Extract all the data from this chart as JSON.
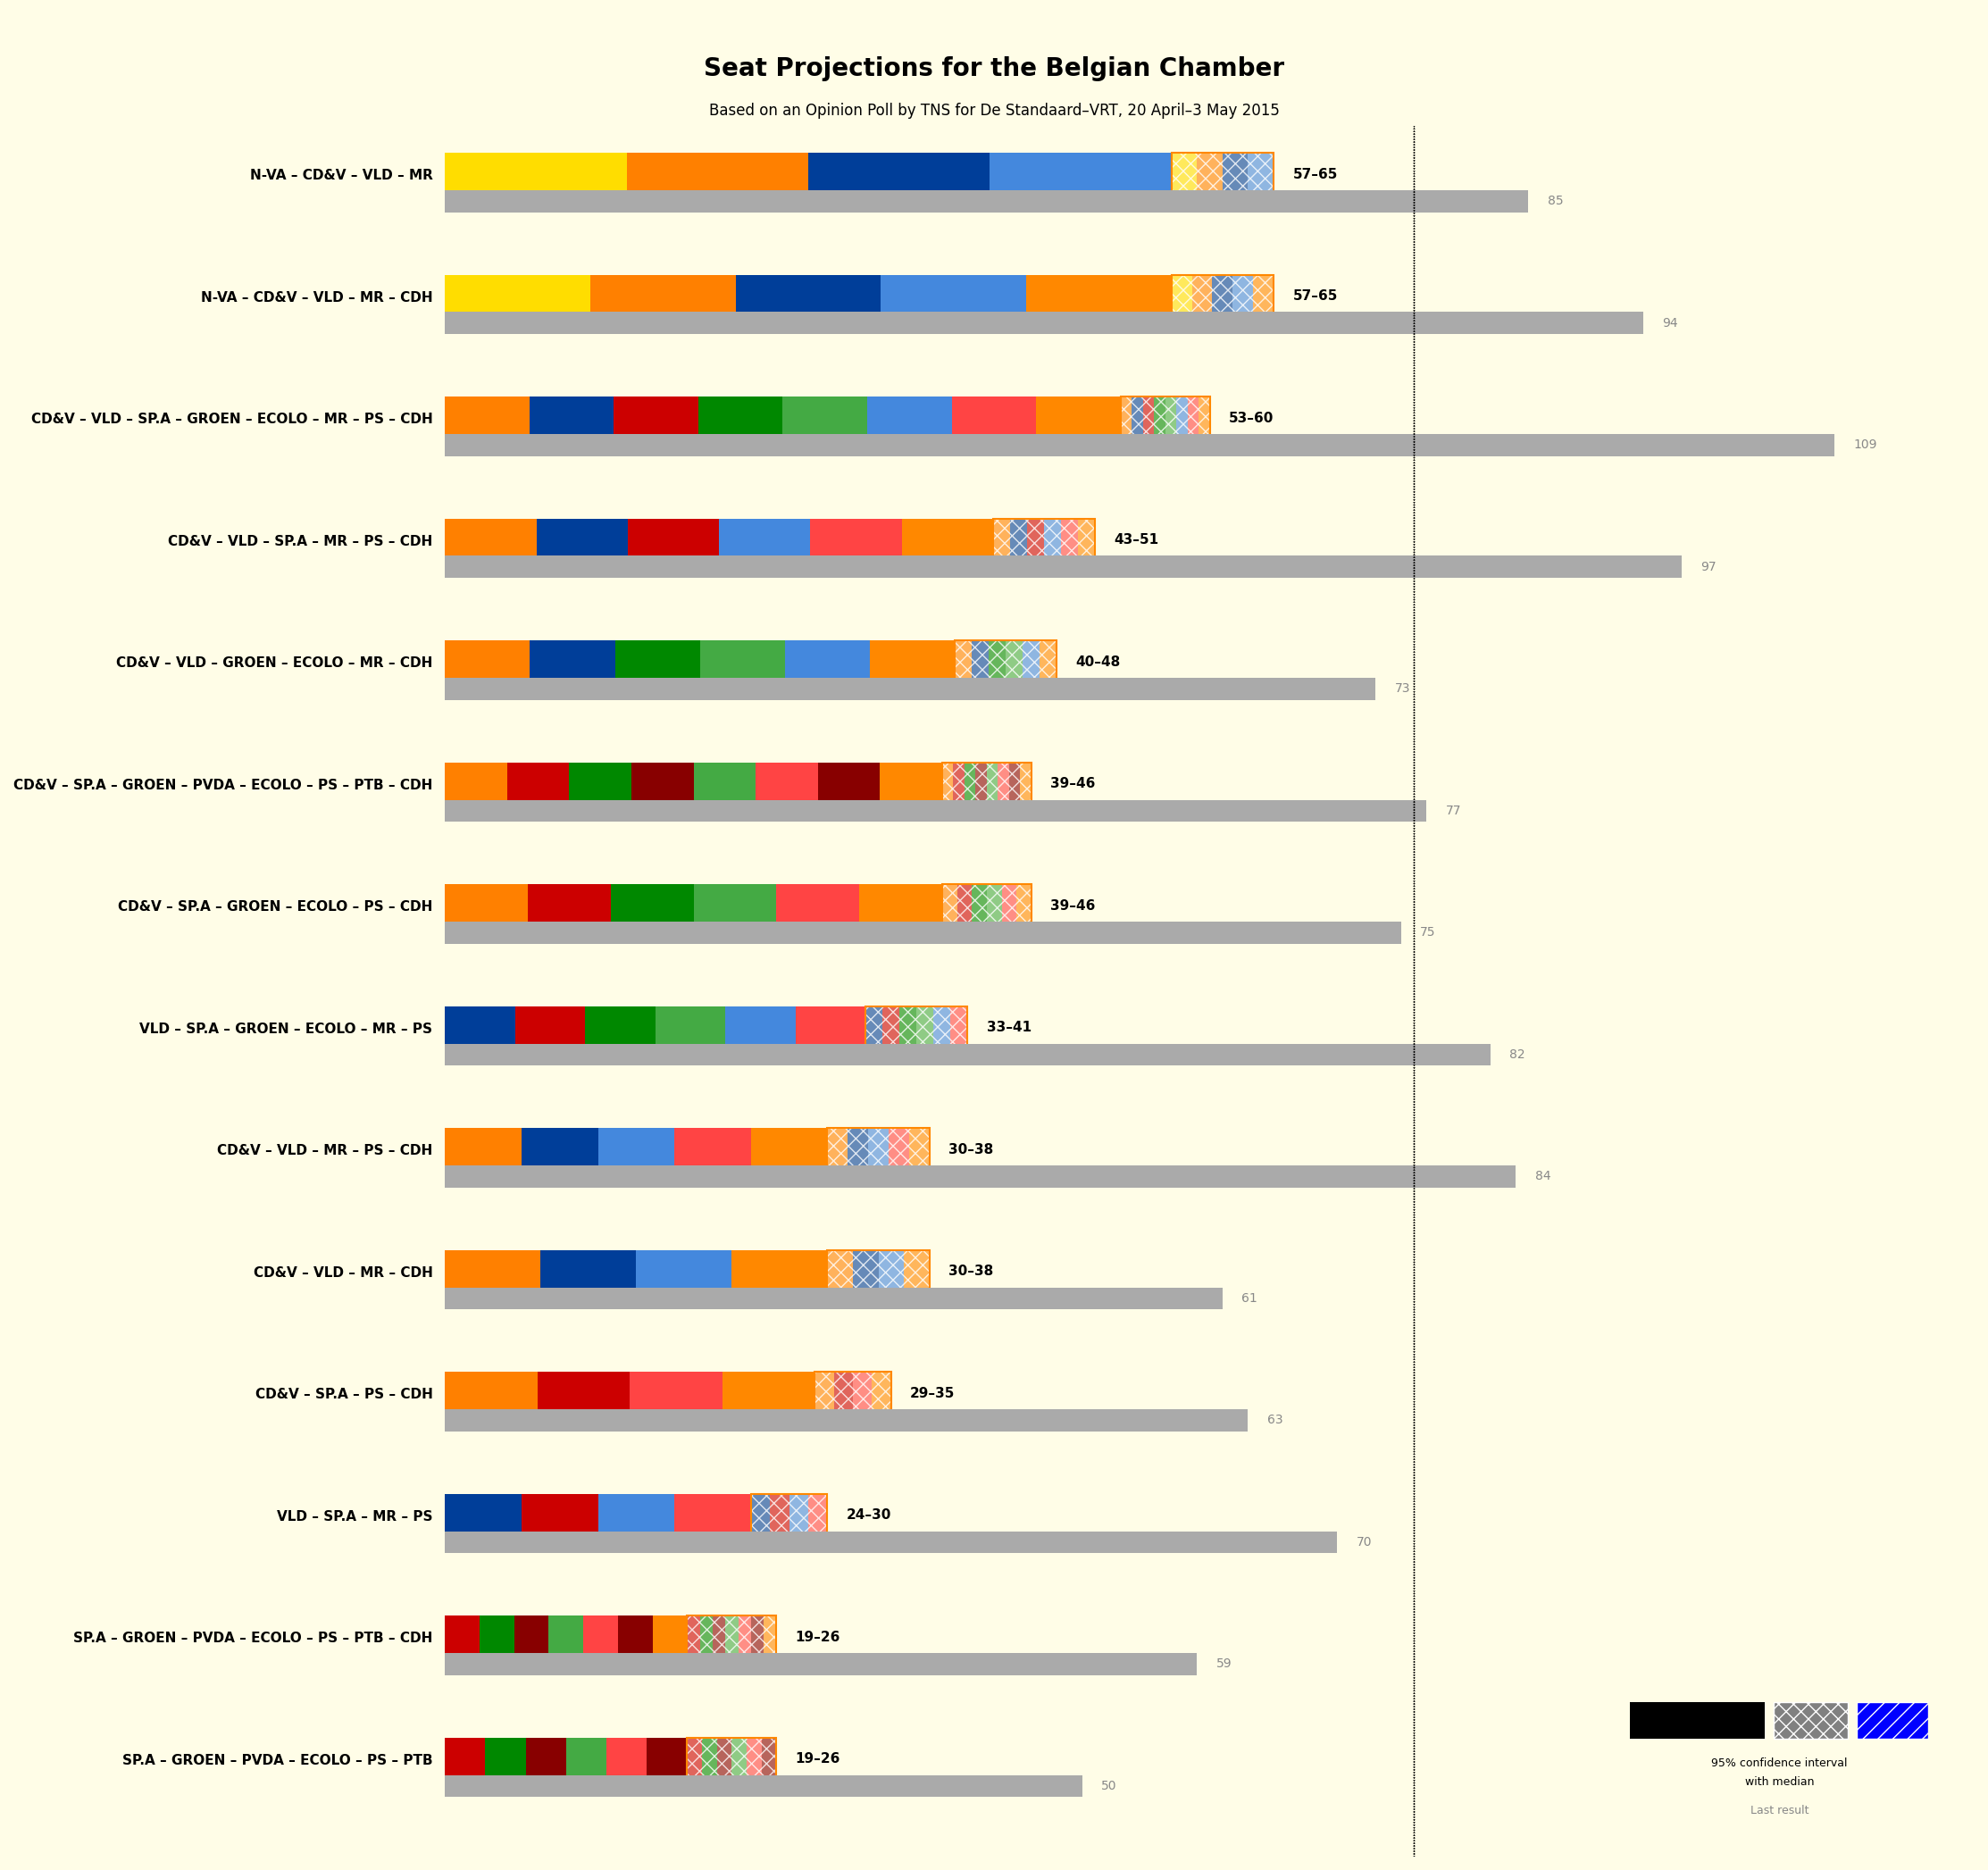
{
  "title": "Seat Projections for the Belgian Chamber",
  "subtitle": "Based on an Opinion Poll by TNS for De Standaard–VRT, 20 April–3 May 2015",
  "background_color": "#FFFDE7",
  "coalitions": [
    {
      "name": "N-VA – CD&V – VLD – MR",
      "min": 57,
      "max": 65,
      "last": 85
    },
    {
      "name": "N-VA – CD&V – VLD – MR – CDH",
      "min": 57,
      "max": 65,
      "last": 94
    },
    {
      "name": "CD&V – VLD – SP.A – GROEN – ECOLO – MR – PS – CDH",
      "min": 53,
      "max": 60,
      "last": 109
    },
    {
      "name": "CD&V – VLD – SP.A – MR – PS – CDH",
      "min": 43,
      "max": 51,
      "last": 97
    },
    {
      "name": "CD&V – VLD – GROEN – ECOLO – MR – CDH",
      "min": 40,
      "max": 48,
      "last": 73
    },
    {
      "name": "CD&V – SP.A – GROEN – PVDA – ECOLO – PS – PTB – CDH",
      "min": 39,
      "max": 46,
      "last": 77
    },
    {
      "name": "CD&V – SP.A – GROEN – ECOLO – PS – CDH",
      "min": 39,
      "max": 46,
      "last": 75
    },
    {
      "name": "VLD – SP.A – GROEN – ECOLO – MR – PS",
      "min": 33,
      "max": 41,
      "last": 82
    },
    {
      "name": "CD&V – VLD – MR – PS – CDH",
      "min": 30,
      "max": 38,
      "last": 84
    },
    {
      "name": "CD&V – VLD – MR – CDH",
      "min": 30,
      "max": 38,
      "last": 61
    },
    {
      "name": "CD&V – SP.A – PS – CDH",
      "min": 29,
      "max": 35,
      "last": 63
    },
    {
      "name": "VLD – SP.A – MR – PS",
      "min": 24,
      "max": 30,
      "last": 70
    },
    {
      "name": "SP.A – GROEN – PVDA – ECOLO – PS – PTB – CDH",
      "min": 19,
      "max": 26,
      "last": 59
    },
    {
      "name": "SP.A – GROEN – PVDA – ECOLO – PS – PTB",
      "min": 19,
      "max": 26,
      "last": 50
    }
  ],
  "majority_line": 76,
  "xmax": 120,
  "bar_height": 0.35,
  "ci_bar_height": 0.18,
  "party_colors": {
    "N-VA": "#FFDD00",
    "CD&V": "#FF8000",
    "VLD": "#003E99",
    "MR": "#003E99",
    "CDH": "#FF8000",
    "SP.A": "#CC0000",
    "GROEN": "#5CB85C",
    "ECOLO": "#5CB85C",
    "PS": "#CC0000",
    "PVDA": "#CC0000",
    "PTB": "#CC0000"
  },
  "stripe_colors": [
    "#FFDD00",
    "#FF8000",
    "#003E99",
    "#CC0000",
    "#5CB85C",
    "#AA00AA",
    "#FF8000",
    "#CC0000"
  ]
}
